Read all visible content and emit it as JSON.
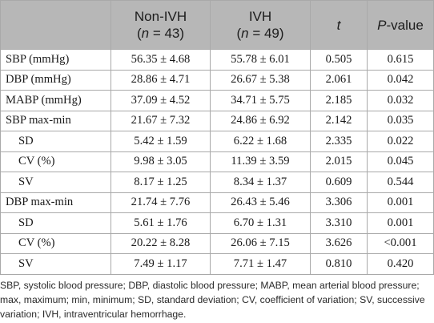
{
  "header": {
    "col_variable": "",
    "group1_name": "Non-IVH",
    "group1_n_prefix": "(",
    "group1_n_var": "n",
    "group1_n_suffix": " = 43)",
    "group2_name": "IVH",
    "group2_n_prefix": "(",
    "group2_n_var": "n",
    "group2_n_suffix": " = 49)",
    "t_label": "t",
    "p_italic": "P",
    "p_rest": "-value"
  },
  "rows": [
    {
      "label": "SBP (mmHg)",
      "non_ivh": "56.35 ± 4.68",
      "ivh": "55.78 ± 6.01",
      "t": "0.505",
      "p": "0.615"
    },
    {
      "label": "DBP (mmHg)",
      "non_ivh": "28.86 ± 4.71",
      "ivh": "26.67 ± 5.38",
      "t": "2.061",
      "p": "0.042"
    },
    {
      "label": "MABP (mmHg)",
      "non_ivh": "37.09 ± 4.52",
      "ivh": "34.71 ± 5.75",
      "t": "2.185",
      "p": "0.032"
    },
    {
      "label": "SBP max-min",
      "non_ivh": "21.67 ± 7.32",
      "ivh": "24.86 ± 6.92",
      "t": "2.142",
      "p": "0.035"
    },
    {
      "label": "SD",
      "non_ivh": "5.42 ± 1.59",
      "ivh": "6.22 ± 1.68",
      "t": "2.335",
      "p": "0.022"
    },
    {
      "label": "CV (%)",
      "non_ivh": "9.98 ± 3.05",
      "ivh": "11.39 ± 3.59",
      "t": "2.015",
      "p": "0.045"
    },
    {
      "label": "SV",
      "non_ivh": "8.17 ± 1.25",
      "ivh": "8.34 ± 1.37",
      "t": "0.609",
      "p": "0.544"
    },
    {
      "label": "DBP max-min",
      "non_ivh": "21.74 ± 7.76",
      "ivh": "26.43 ± 5.46",
      "t": "3.306",
      "p": "0.001"
    },
    {
      "label": "SD",
      "non_ivh": "5.61 ± 1.76",
      "ivh": "6.70 ± 1.31",
      "t": "3.310",
      "p": "0.001"
    },
    {
      "label": "CV (%)",
      "non_ivh": "20.22 ± 8.28",
      "ivh": "26.06 ± 7.15",
      "t": "3.626",
      "p": "<0.001"
    },
    {
      "label": "SV",
      "non_ivh": "7.49 ± 1.17",
      "ivh": "7.71 ± 1.47",
      "t": "0.810",
      "p": "0.420"
    }
  ],
  "footnote": "SBP, systolic blood pressure; DBP, diastolic blood pressure; MABP, mean arterial blood pressure; max, maximum; min, minimum; SD, standard deviation; CV, coefficient of variation; SV, successive variation; IVH, intraventricular hemorrhage.",
  "colors": {
    "header_bg": "#b7b7b7",
    "border": "#a9a9a9",
    "text": "#1a1a1a"
  }
}
